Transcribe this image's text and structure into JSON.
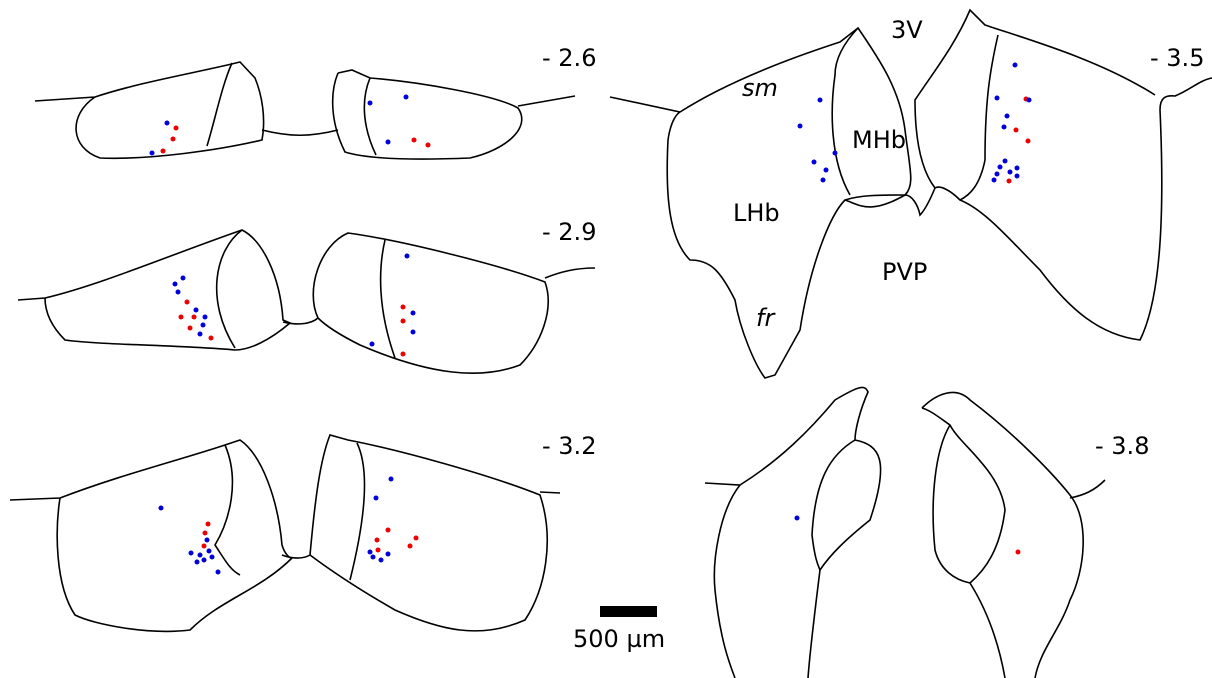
{
  "sections": [
    {
      "label": "- 2.6"
    },
    {
      "label": "- 2.9"
    },
    {
      "label": "- 3.2"
    },
    {
      "label": "- 3.5"
    },
    {
      "label": "- 3.8"
    }
  ],
  "regions": {
    "third_ventricle": "3V",
    "stria_medullaris": "sm",
    "medial_habenula": "MHb",
    "lateral_habenula": "LHb",
    "fasciculus_retroflexus": "fr",
    "paraventricular_posterior": "PVP"
  },
  "scale_bar": {
    "label": "500 µm"
  }
}
